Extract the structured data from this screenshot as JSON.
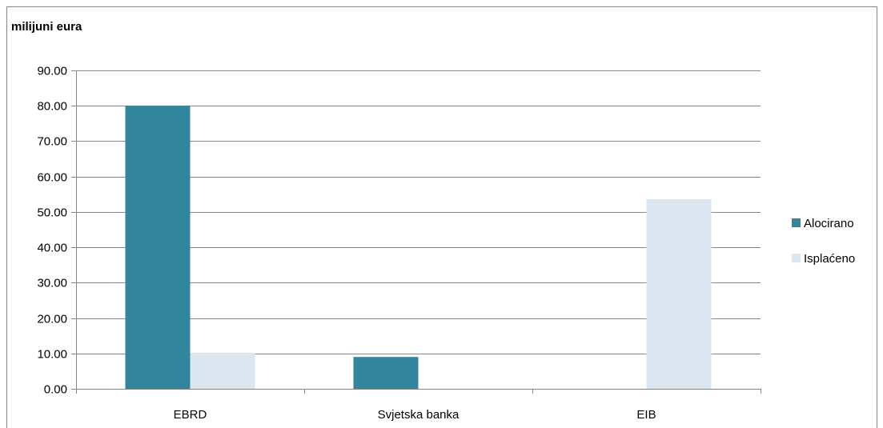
{
  "chart_data": {
    "type": "bar",
    "unit_label": "milijuni eura",
    "categories": [
      "EBRD",
      "Svjetska banka",
      "EIB"
    ],
    "series": [
      {
        "name": "Alocirano",
        "values": [
          80.0,
          9.0,
          0.0
        ],
        "color": "#31859c"
      },
      {
        "name": "Isplaćeno",
        "values": [
          10.2,
          0.0,
          53.6
        ],
        "color": "#dce6f1"
      }
    ],
    "ylim": [
      0,
      90
    ],
    "yticks": [
      "0.00",
      "10.00",
      "20.00",
      "30.00",
      "40.00",
      "50.00",
      "60.00",
      "70.00",
      "80.00",
      "90.00"
    ],
    "grid": true,
    "legend_position": "right",
    "gridline_color": "#868686",
    "border_color": "#868686"
  }
}
